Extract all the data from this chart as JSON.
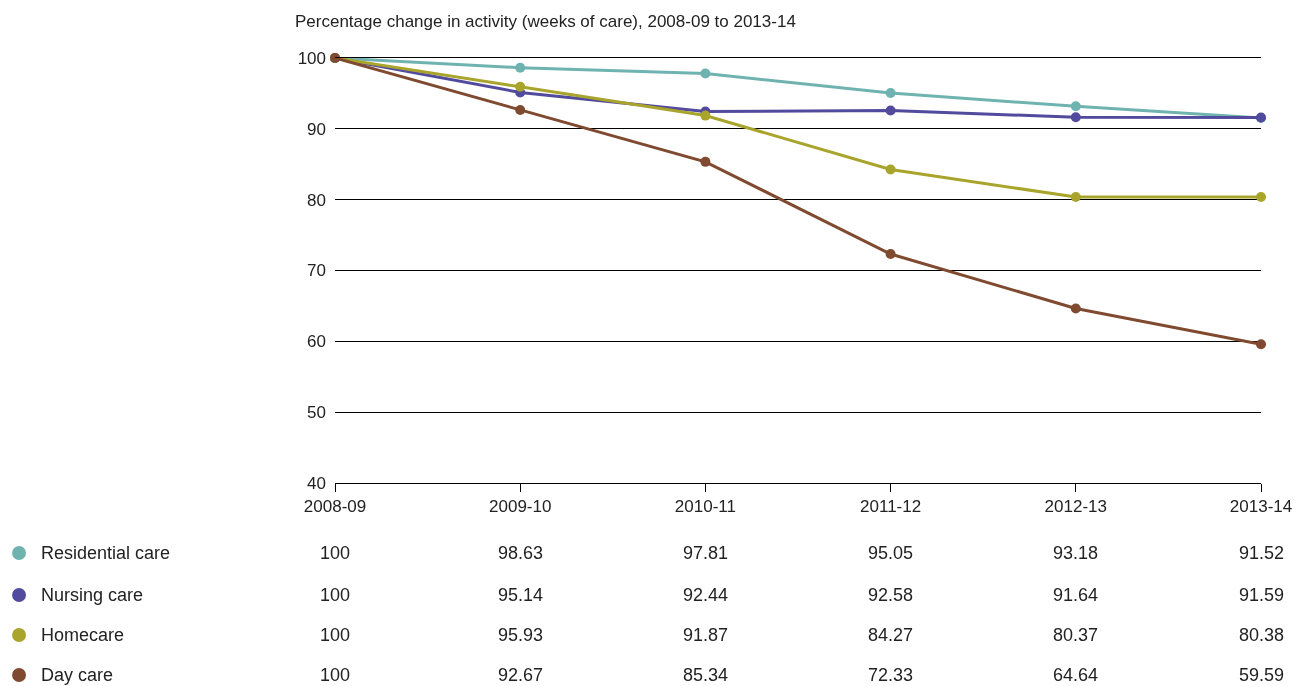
{
  "chart_data": {
    "type": "line",
    "title": "Percentage change in activity (weeks of care), 2008-09 to 2013-14",
    "categories": [
      "2008-09",
      "2009-10",
      "2010-11",
      "2011-12",
      "2012-13",
      "2013-14"
    ],
    "series": [
      {
        "name": "Residential care",
        "color": "#6fb3b0",
        "values": [
          100,
          98.63,
          97.81,
          95.05,
          93.18,
          91.52
        ]
      },
      {
        "name": "Nursing care",
        "color": "#524a9c",
        "values": [
          100,
          95.14,
          92.44,
          92.58,
          91.64,
          91.59
        ]
      },
      {
        "name": "Homecare",
        "color": "#a9a42c",
        "values": [
          100,
          95.93,
          91.87,
          84.27,
          80.37,
          80.38
        ]
      },
      {
        "name": "Day care",
        "color": "#7f4a2f",
        "values": [
          100,
          92.67,
          85.34,
          72.33,
          64.64,
          59.59
        ]
      }
    ],
    "ylim": [
      40,
      100
    ],
    "yticks": [
      40,
      50,
      60,
      70,
      80,
      90,
      100
    ],
    "grid": "y",
    "marker": "circle",
    "line_style": "solid",
    "data_labels": true,
    "legend": "bottom left"
  }
}
